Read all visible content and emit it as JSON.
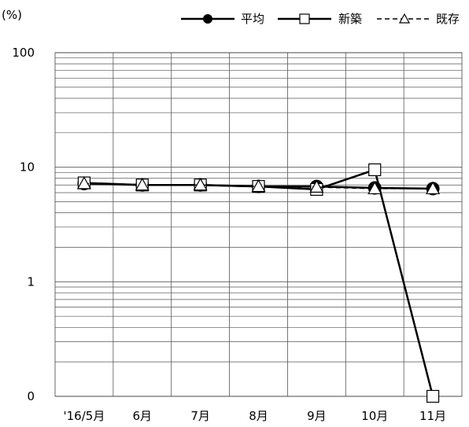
{
  "chart_data": {
    "type": "line",
    "yunit": "(%)",
    "yscale": "log",
    "ylim": [
      0.1,
      100
    ],
    "yticks": [
      {
        "value": 0.1,
        "label": "0"
      },
      {
        "value": 1,
        "label": "1"
      },
      {
        "value": 10,
        "label": "10"
      },
      {
        "value": 100,
        "label": "100"
      }
    ],
    "grid": true,
    "legend_position": "top-right",
    "categories": [
      "'16/5月",
      "6月",
      "7月",
      "8月",
      "9月",
      "10月",
      "11月"
    ],
    "series": [
      {
        "name": "平均",
        "marker": "filled-circle",
        "line": "solid",
        "color": "#000000",
        "values": [
          7.2,
          7.0,
          7.0,
          6.8,
          6.8,
          6.6,
          6.5
        ]
      },
      {
        "name": "新築",
        "marker": "open-square",
        "line": "solid",
        "color": "#000000",
        "values": [
          7.3,
          7.0,
          7.0,
          6.8,
          6.4,
          9.5,
          0.1
        ]
      },
      {
        "name": "既存",
        "marker": "open-triangle",
        "line": "dashed",
        "color": "#000000",
        "values": [
          7.2,
          7.0,
          7.0,
          6.8,
          6.7,
          6.5,
          6.5
        ]
      }
    ]
  }
}
